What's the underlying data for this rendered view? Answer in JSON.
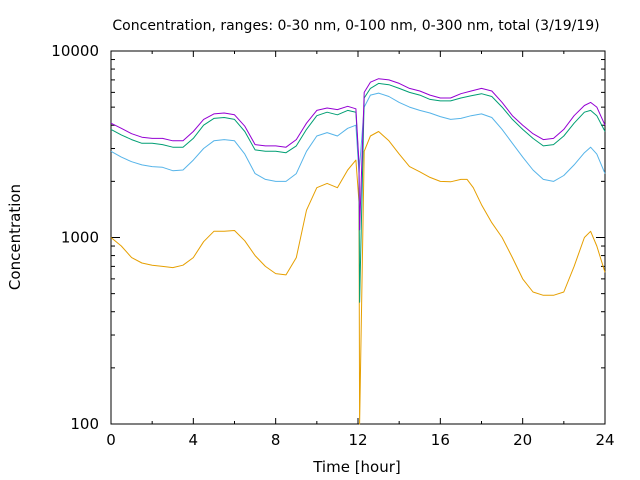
{
  "chart_data": {
    "type": "line",
    "title": "Concentration, ranges: 0-30 nm, 0-100 nm, 0-300 nm, total (3/19/19)",
    "xlabel": "Time [hour]",
    "ylabel": "Concentration",
    "xlim": [
      0,
      24
    ],
    "ylim": [
      100,
      10000
    ],
    "yscale": "log",
    "grid": false,
    "x_ticks": [
      0,
      4,
      8,
      12,
      16,
      20,
      24
    ],
    "x_tick_labels": [
      "0",
      "4",
      "8",
      "12",
      "16",
      "20",
      "24"
    ],
    "y_ticks": [
      100,
      1000,
      10000
    ],
    "y_tick_labels": [
      "100",
      "1000",
      "10000"
    ],
    "series": [
      {
        "color": "#e69f00",
        "x": [
          0,
          0.5,
          1,
          1.5,
          2,
          2.5,
          3,
          3.5,
          4,
          4.5,
          5,
          5.5,
          6,
          6.5,
          7,
          7.5,
          8,
          8.5,
          9,
          9.5,
          10,
          10.5,
          11,
          11.5,
          11.9,
          12.05,
          12.08,
          12.3,
          12.6,
          13,
          13.5,
          14,
          14.5,
          15,
          15.5,
          16,
          16.5,
          17,
          17.3,
          17.6,
          18,
          18.5,
          19,
          19.5,
          20,
          20.5,
          21,
          21.5,
          22,
          22.5,
          23,
          23.3,
          23.6,
          24
        ],
        "y": [
          1000,
          900,
          780,
          730,
          710,
          700,
          690,
          710,
          780,
          950,
          1080,
          1080,
          1090,
          960,
          800,
          700,
          640,
          630,
          780,
          1400,
          1850,
          1950,
          1850,
          2300,
          2600,
          1550,
          100,
          2900,
          3500,
          3700,
          3300,
          2800,
          2400,
          2250,
          2100,
          2000,
          1990,
          2050,
          2050,
          1850,
          1500,
          1200,
          1000,
          780,
          600,
          510,
          490,
          490,
          510,
          700,
          1000,
          1080,
          900,
          650
        ]
      },
      {
        "color": "#56b4e9",
        "x": [
          0,
          0.5,
          1,
          1.5,
          2,
          2.5,
          3,
          3.5,
          4,
          4.5,
          5,
          5.5,
          6,
          6.5,
          7,
          7.5,
          8,
          8.5,
          9,
          9.5,
          10,
          10.5,
          11,
          11.5,
          11.9,
          12.05,
          12.3,
          12.6,
          13,
          13.5,
          14,
          14.5,
          15,
          15.5,
          16,
          16.5,
          17,
          17.5,
          18,
          18.5,
          19,
          19.5,
          20,
          20.5,
          21,
          21.5,
          22,
          22.5,
          23,
          23.3,
          23.6,
          24
        ],
        "y": [
          2900,
          2700,
          2550,
          2450,
          2400,
          2380,
          2280,
          2300,
          2600,
          3000,
          3300,
          3350,
          3300,
          2800,
          2200,
          2050,
          2000,
          2000,
          2200,
          2900,
          3500,
          3650,
          3500,
          3850,
          4000,
          2200,
          5000,
          5800,
          5950,
          5700,
          5300,
          5000,
          4800,
          4650,
          4450,
          4300,
          4350,
          4500,
          4600,
          4400,
          3800,
          3200,
          2700,
          2300,
          2050,
          2000,
          2150,
          2450,
          2850,
          3050,
          2800,
          2200
        ]
      },
      {
        "color": "#009e73",
        "x": [
          0,
          0.5,
          1,
          1.5,
          2,
          2.5,
          3,
          3.5,
          4,
          4.5,
          5,
          5.5,
          6,
          6.5,
          7,
          7.5,
          8,
          8.5,
          9,
          9.5,
          10,
          10.5,
          11,
          11.5,
          11.9,
          12.05,
          12.08,
          12.3,
          12.6,
          13,
          13.5,
          14,
          14.5,
          15,
          15.5,
          16,
          16.5,
          17,
          17.5,
          18,
          18.5,
          19,
          19.5,
          20,
          20.5,
          21,
          21.5,
          22,
          22.5,
          23,
          23.3,
          23.6,
          24
        ],
        "y": [
          3800,
          3550,
          3350,
          3200,
          3200,
          3150,
          3050,
          3050,
          3400,
          4000,
          4350,
          4400,
          4300,
          3700,
          2950,
          2900,
          2900,
          2850,
          3100,
          3800,
          4500,
          4700,
          4550,
          4800,
          4700,
          2400,
          450,
          5600,
          6300,
          6700,
          6600,
          6300,
          6000,
          5800,
          5500,
          5400,
          5400,
          5600,
          5750,
          5900,
          5700,
          5000,
          4300,
          3800,
          3400,
          3100,
          3150,
          3500,
          4100,
          4700,
          4800,
          4500,
          3700
        ]
      },
      {
        "color": "#9400d3",
        "x": [
          0,
          0.5,
          1,
          1.5,
          2,
          2.5,
          3,
          3.5,
          4,
          4.5,
          5,
          5.5,
          6,
          6.5,
          7,
          7.5,
          8,
          8.5,
          9,
          9.5,
          10,
          10.5,
          11,
          11.5,
          11.9,
          12.05,
          12.08,
          12.3,
          12.6,
          13,
          13.5,
          14,
          14.5,
          15,
          15.5,
          16,
          16.5,
          17,
          17.5,
          18,
          18.5,
          19,
          19.5,
          20,
          20.5,
          21,
          21.5,
          22,
          22.5,
          23,
          23.3,
          23.6,
          24
        ],
        "y": [
          4100,
          3850,
          3600,
          3450,
          3400,
          3400,
          3300,
          3300,
          3700,
          4300,
          4600,
          4650,
          4550,
          3950,
          3150,
          3100,
          3100,
          3050,
          3350,
          4100,
          4800,
          4950,
          4850,
          5050,
          4900,
          2500,
          1100,
          6000,
          6800,
          7100,
          7000,
          6700,
          6300,
          6100,
          5800,
          5600,
          5600,
          5900,
          6100,
          6300,
          6100,
          5300,
          4500,
          4000,
          3600,
          3350,
          3400,
          3800,
          4500,
          5100,
          5300,
          5000,
          4000
        ]
      }
    ]
  }
}
